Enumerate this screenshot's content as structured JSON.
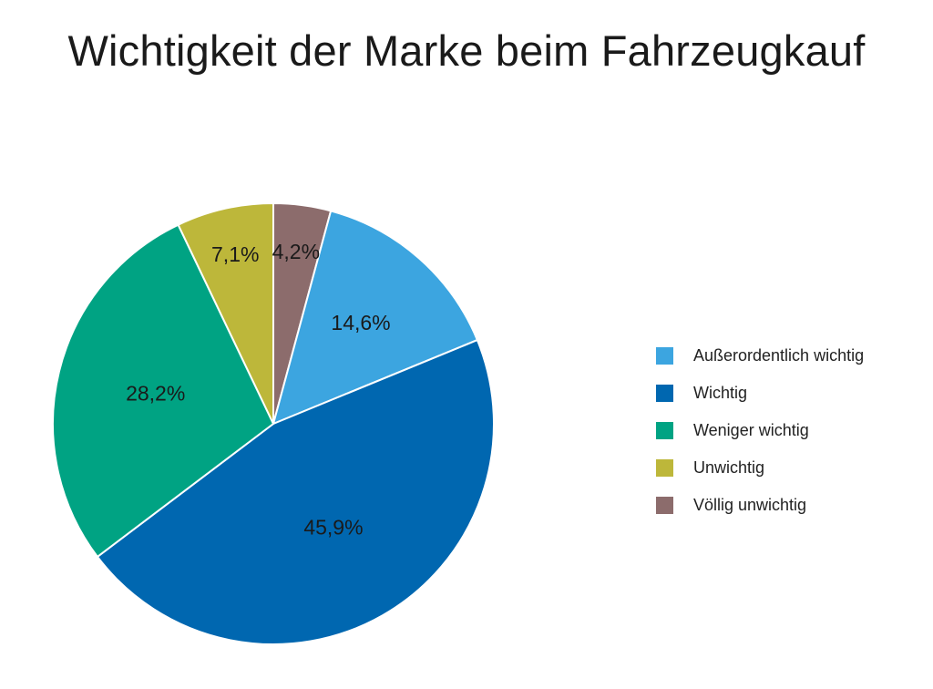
{
  "chart_data": {
    "type": "pie",
    "title": "Wichtigkeit der Marke beim Fahrzeugkauf",
    "categories": [
      "Außerordentlich wichtig",
      "Wichtig",
      "Weniger wichtig",
      "Unwichtig",
      "Völlig unwichtig"
    ],
    "values": [
      14.6,
      45.9,
      28.2,
      7.1,
      4.2
    ],
    "value_labels": [
      "14,6%",
      "45,9%",
      "28,2%",
      "7,1%",
      "4,2%"
    ],
    "colors": [
      "#3ca5e0",
      "#0067b0",
      "#00a383",
      "#bdb73a",
      "#8c6c6c"
    ],
    "start": "top",
    "direction": "clockwise",
    "first_slice": "Völlig unwichtig",
    "legend_position": "right"
  }
}
